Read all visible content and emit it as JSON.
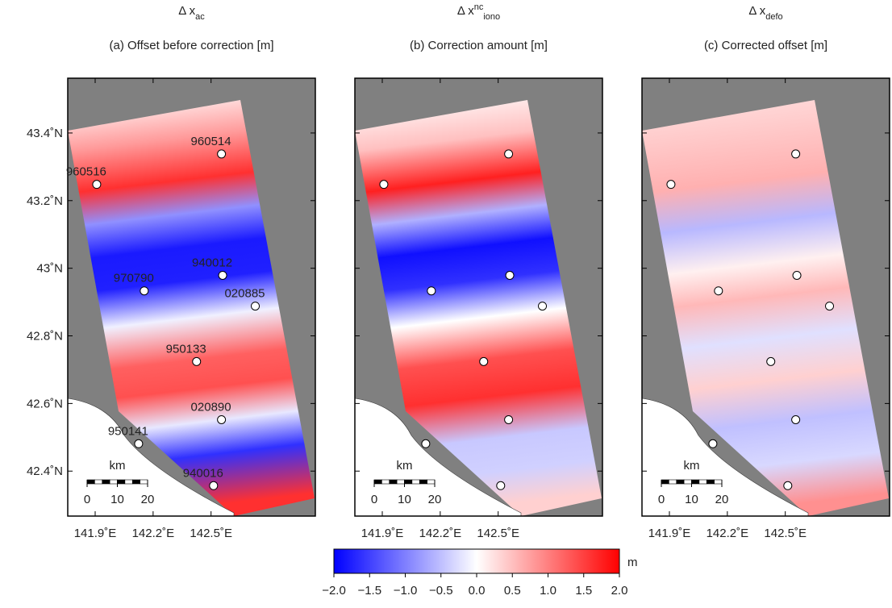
{
  "panels": [
    {
      "title": {
        "base": "Δ x",
        "sub": "ac"
      },
      "subtitle": "(a) Offset before correction [m]"
    },
    {
      "title": {
        "base": "Δ x",
        "sup": "nc",
        "sub": "iono"
      },
      "subtitle": "(b) Correction amount [m]"
    },
    {
      "title": {
        "base": "Δ x",
        "sub": "defo"
      },
      "subtitle": "(c) Corrected offset [m]"
    }
  ],
  "map": {
    "xlim": [
      141.758,
      143.04
    ],
    "ylim": [
      42.267,
      43.562
    ],
    "lat_ticks": [
      {
        "value": 43.4,
        "label": "43.4˚N"
      },
      {
        "value": 43.2,
        "label": "43.2˚N"
      },
      {
        "value": 43,
        "label": "43˚N"
      },
      {
        "value": 42.8,
        "label": "42.8˚N"
      },
      {
        "value": 42.6,
        "label": "42.6˚N"
      },
      {
        "value": 42.4,
        "label": "42.4˚N"
      }
    ],
    "lon_ticks": [
      {
        "value": 141.9,
        "label": "141.9˚E"
      },
      {
        "value": 142.2,
        "label": "142.2˚E"
      },
      {
        "value": 142.5,
        "label": "142.5˚E"
      }
    ]
  },
  "stations": [
    {
      "id": "960514",
      "lon": 142.554,
      "lat": 43.338
    },
    {
      "id": "960516",
      "lon": 141.908,
      "lat": 43.248
    },
    {
      "id": "940012",
      "lon": 142.56,
      "lat": 42.979
    },
    {
      "id": "970790",
      "lon": 142.154,
      "lat": 42.933
    },
    {
      "id": "020885",
      "lon": 142.729,
      "lat": 42.888
    },
    {
      "id": "950133",
      "lon": 142.425,
      "lat": 42.724
    },
    {
      "id": "020890",
      "lon": 142.554,
      "lat": 42.552
    },
    {
      "id": "950141",
      "lon": 142.125,
      "lat": 42.481
    },
    {
      "id": "940016",
      "lon": 142.513,
      "lat": 42.357
    }
  ],
  "scale_bar": {
    "unit": "km",
    "ticks": [
      0,
      10,
      20
    ]
  },
  "colorbar": {
    "unit": "m",
    "lim": [
      -2,
      2
    ],
    "colors": [
      "#0000ff",
      "#ffffff",
      "#ff0000"
    ],
    "ticks": [
      {
        "value": -2,
        "label": "−2.0"
      },
      {
        "value": -1.5,
        "label": "−1.5"
      },
      {
        "value": -1,
        "label": "−1.0"
      },
      {
        "value": -0.5,
        "label": "−0.5"
      },
      {
        "value": 0,
        "label": "0.0"
      },
      0.5,
      {
        "value": 1,
        "label": "1.0"
      },
      1.5,
      {
        "value": 2,
        "label": "2.0"
      }
    ]
  }
}
